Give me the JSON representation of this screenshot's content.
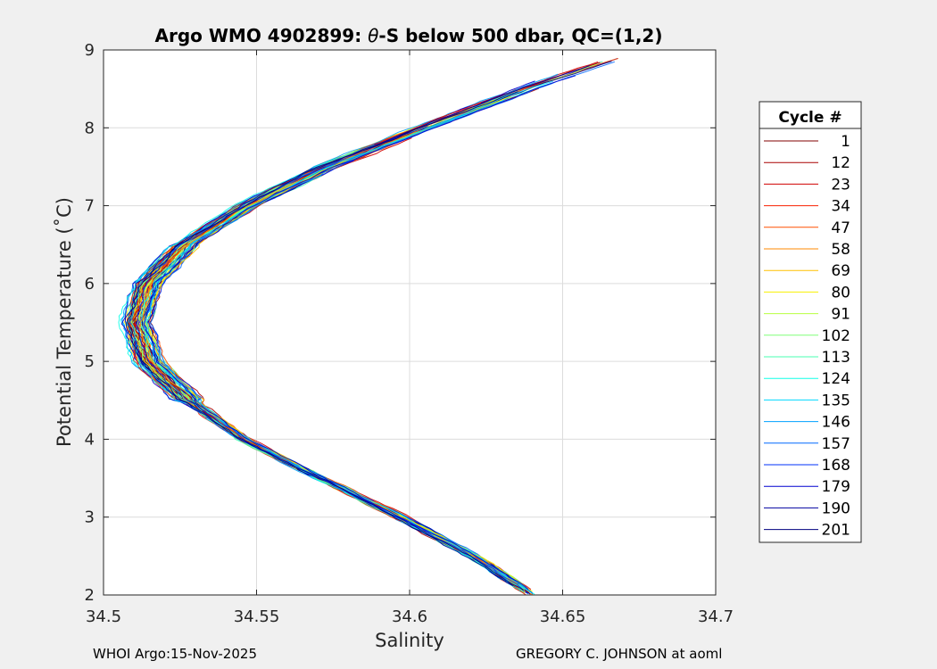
{
  "chart_data": {
    "type": "line",
    "title": "Argo WMO 4902899: θ-S below 500 dbar,  QC=(1,2)",
    "title_parts": {
      "prefix": "Argo WMO 4902899: ",
      "theta": "θ",
      "suffix": "-S below 500 dbar,  QC=(1,2)"
    },
    "xlabel": "Salinity",
    "ylabel": "Potential Temperature (˚C)",
    "xlim": [
      34.5,
      34.7
    ],
    "ylim": [
      2,
      9
    ],
    "xticks": [
      "34.5",
      "34.55",
      "34.6",
      "34.65",
      "34.7"
    ],
    "yticks": [
      "2",
      "3",
      "4",
      "5",
      "6",
      "7",
      "8",
      "9"
    ],
    "grid": true,
    "legend_title": "Cycle #",
    "legend_position": "right",
    "colormap": "jet",
    "mean_profile": {
      "theta": [
        2.0,
        2.5,
        3.0,
        3.5,
        4.0,
        4.5,
        5.0,
        5.5,
        6.0,
        6.5,
        7.0,
        7.5,
        8.0,
        8.5,
        8.9
      ],
      "salinity": [
        34.64,
        34.621,
        34.597,
        34.571,
        34.546,
        34.528,
        34.515,
        34.511,
        34.515,
        34.527,
        34.547,
        34.573,
        34.605,
        34.638,
        34.668
      ]
    },
    "series": [
      {
        "name": "1",
        "color": "#800000"
      },
      {
        "name": "12",
        "color": "#a80000"
      },
      {
        "name": "23",
        "color": "#d00000"
      },
      {
        "name": "34",
        "color": "#f82000"
      },
      {
        "name": "47",
        "color": "#ff5000"
      },
      {
        "name": "58",
        "color": "#ff8800"
      },
      {
        "name": "69",
        "color": "#ffc000"
      },
      {
        "name": "80",
        "color": "#f8f000"
      },
      {
        "name": "91",
        "color": "#b8ff40"
      },
      {
        "name": "102",
        "color": "#80ff78"
      },
      {
        "name": "113",
        "color": "#48ffb0"
      },
      {
        "name": "124",
        "color": "#10ffe8"
      },
      {
        "name": "135",
        "color": "#00d8ff"
      },
      {
        "name": "146",
        "color": "#00a0ff"
      },
      {
        "name": "157",
        "color": "#0068ff"
      },
      {
        "name": "168",
        "color": "#0030f8"
      },
      {
        "name": "179",
        "color": "#0000d0"
      },
      {
        "name": "190",
        "color": "#0000a0"
      },
      {
        "name": "201",
        "color": "#000080"
      }
    ]
  },
  "footer": {
    "left": "WHOI Argo:15-Nov-2025",
    "right": "GREGORY C. JOHNSON at aoml"
  }
}
